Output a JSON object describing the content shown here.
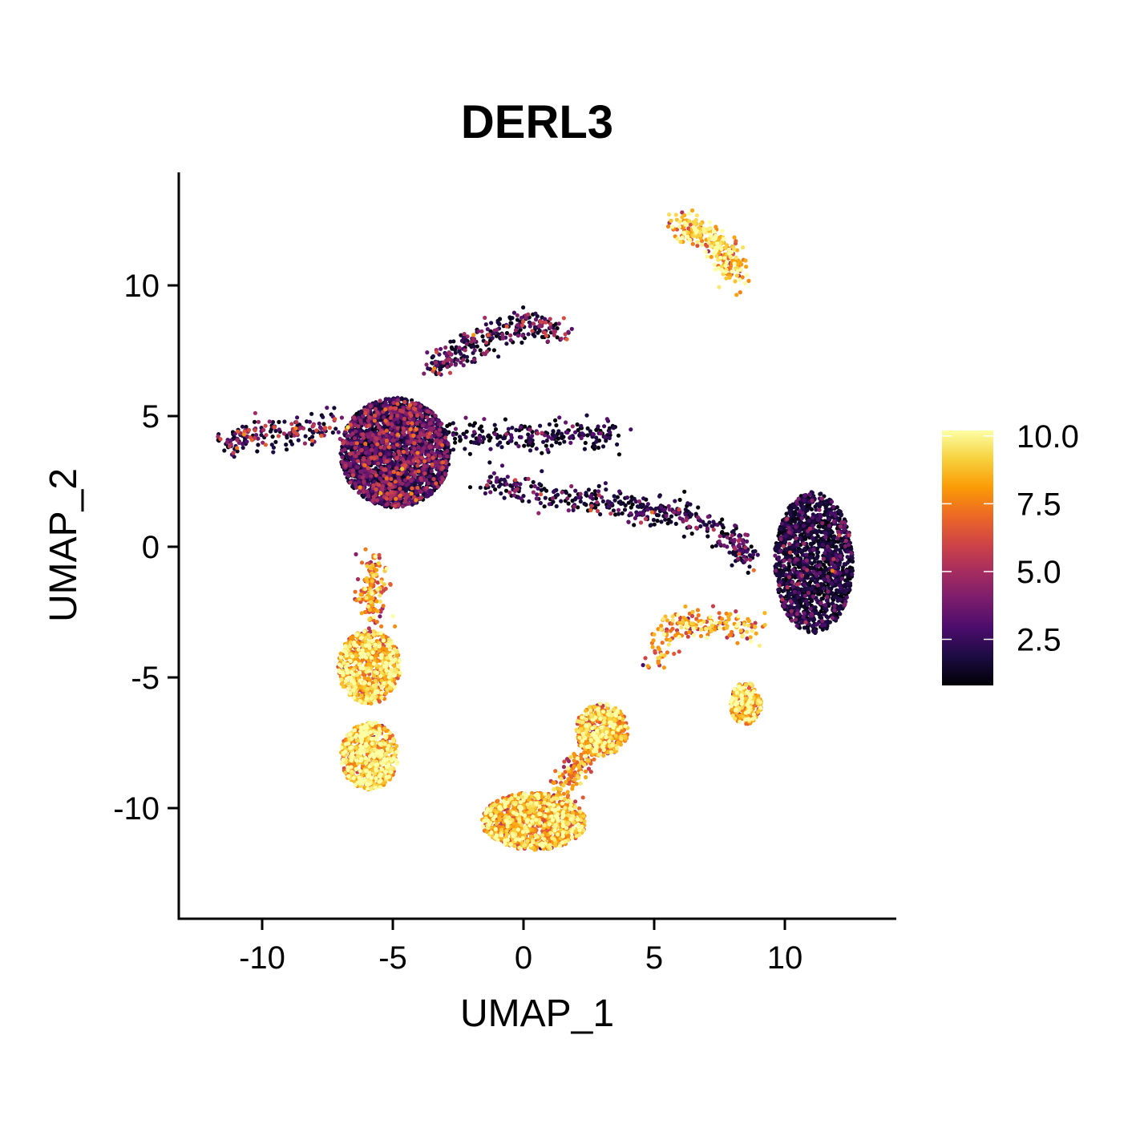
{
  "chart_data": {
    "type": "scatter",
    "title": "DERL3",
    "xlabel": "UMAP_1",
    "ylabel": "UMAP_2",
    "xlim": [
      -13.5,
      14
    ],
    "ylim": [
      -14,
      14.2
    ],
    "xticks": [
      -10,
      -5,
      0,
      5,
      10
    ],
    "yticks": [
      -10,
      -5,
      0,
      5,
      10
    ],
    "xtick_labels": [
      "-10",
      "-5",
      "0",
      "5",
      "10"
    ],
    "ytick_labels": [
      "-10",
      "-5",
      "0",
      "5",
      "10"
    ],
    "grid": false,
    "legend": {
      "type": "colorbar",
      "placement": "right",
      "range": [
        0.8,
        10.2
      ],
      "ticks": [
        2.5,
        5.0,
        7.5,
        10.0
      ],
      "tick_labels": [
        "2.5",
        "5.0",
        "7.5",
        "10.0"
      ],
      "colormap": "inferno",
      "stops": [
        "#000004",
        "#1b0c41",
        "#4a0c6b",
        "#781c6d",
        "#a52c60",
        "#cf4446",
        "#ed6925",
        "#fb9b06",
        "#f7d13d",
        "#fcffa4"
      ]
    },
    "clusters": [
      {
        "name": "left main blob",
        "center": [
          -4.9,
          3.6
        ],
        "spread": [
          2.1,
          2.1
        ],
        "expression": 3.2,
        "shape": "ellipse",
        "n": 2600
      },
      {
        "name": "left arm",
        "path": [
          [
            -11.4,
            3.8
          ],
          [
            -10.6,
            4.3
          ],
          [
            -9.2,
            4.4
          ],
          [
            -8.0,
            4.5
          ],
          [
            -7.2,
            4.7
          ]
        ],
        "expression": 4.6,
        "n": 180
      },
      {
        "name": "upper arm",
        "path": [
          [
            -3.6,
            6.8
          ],
          [
            -2.4,
            7.5
          ],
          [
            -1.2,
            8.2
          ],
          [
            0.2,
            8.5
          ],
          [
            1.4,
            8.2
          ]
        ],
        "expression": 3.8,
        "n": 280
      },
      {
        "name": "center bridge",
        "path": [
          [
            -3.2,
            4.5
          ],
          [
            -1.5,
            4.2
          ],
          [
            0.5,
            4.2
          ],
          [
            2.0,
            4.3
          ],
          [
            3.5,
            4.2
          ]
        ],
        "expression": 1.6,
        "n": 220
      },
      {
        "name": "middle trail",
        "path": [
          [
            -1.5,
            2.5
          ],
          [
            0.0,
            2.2
          ],
          [
            2.0,
            1.8
          ],
          [
            3.6,
            1.6
          ],
          [
            5.0,
            1.3
          ],
          [
            6.3,
            1.2
          ],
          [
            8.0,
            0.3
          ],
          [
            8.8,
            -0.8
          ]
        ],
        "expression": 3.0,
        "n": 420
      },
      {
        "name": "right blob",
        "center": [
          11.1,
          -0.6
        ],
        "spread": [
          1.5,
          2.7
        ],
        "expression": 1.4,
        "shape": "ellipse",
        "n": 1500
      },
      {
        "name": "top right crescent",
        "path": [
          [
            5.8,
            12.1
          ],
          [
            6.6,
            12.2
          ],
          [
            7.4,
            11.7
          ],
          [
            7.9,
            11.0
          ],
          [
            8.0,
            10.2
          ]
        ],
        "expression": 8.8,
        "n": 260
      },
      {
        "name": "left lower stem",
        "path": [
          [
            -5.7,
            -0.5
          ],
          [
            -5.8,
            -1.6
          ],
          [
            -5.8,
            -2.8
          ]
        ],
        "expression": 7.2,
        "n": 160
      },
      {
        "name": "left lower top",
        "center": [
          -5.9,
          -4.6
        ],
        "spread": [
          1.2,
          1.4
        ],
        "expression": 8.4,
        "shape": "ellipse",
        "n": 700
      },
      {
        "name": "left lower bottom",
        "center": [
          -5.9,
          -8.0
        ],
        "spread": [
          1.1,
          1.3
        ],
        "expression": 8.6,
        "shape": "ellipse",
        "n": 650
      },
      {
        "name": "bottom center large",
        "center": [
          0.4,
          -10.5
        ],
        "spread": [
          2.0,
          1.1
        ],
        "expression": 8.0,
        "shape": "ellipse",
        "n": 1100
      },
      {
        "name": "bottom center neck",
        "path": [
          [
            1.3,
            -9.6
          ],
          [
            1.9,
            -8.7
          ],
          [
            2.4,
            -7.9
          ]
        ],
        "expression": 7.4,
        "n": 120
      },
      {
        "name": "bottom center upper",
        "center": [
          3.0,
          -7.0
        ],
        "spread": [
          1.0,
          1.0
        ],
        "expression": 8.1,
        "shape": "ellipse",
        "n": 500
      },
      {
        "name": "mid right streak",
        "path": [
          [
            5.0,
            -4.5
          ],
          [
            5.6,
            -3.0
          ],
          [
            6.8,
            -3.0
          ],
          [
            7.8,
            -3.0
          ],
          [
            9.2,
            -3.2
          ]
        ],
        "expression": 7.8,
        "n": 190
      },
      {
        "name": "right small cluster",
        "center": [
          8.5,
          -6.0
        ],
        "spread": [
          0.6,
          0.8
        ],
        "expression": 8.2,
        "shape": "ellipse",
        "n": 240
      }
    ]
  }
}
